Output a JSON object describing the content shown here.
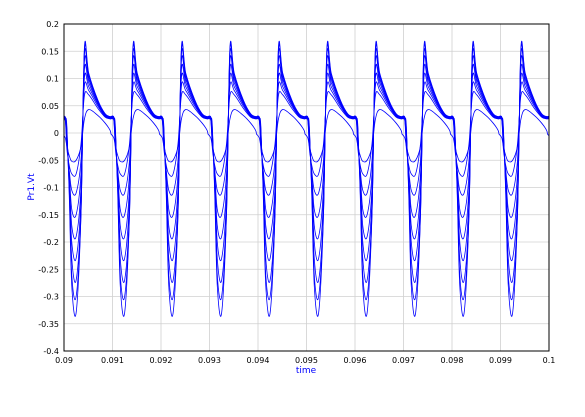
{
  "chart_data": {
    "type": "line",
    "title": "",
    "xlabel": "time",
    "ylabel": "Pr1.Vt",
    "xlim": [
      0.09,
      0.1
    ],
    "ylim": [
      -0.4,
      0.2
    ],
    "grid": true,
    "legend": "none",
    "x_ticks": [
      "0.09",
      "0.091",
      "0.092",
      "0.093",
      "0.094",
      "0.095",
      "0.096",
      "0.097",
      "0.098",
      "0.099",
      "0.1"
    ],
    "y_ticks": [
      "0.2",
      "0.15",
      "0.1",
      "0.05",
      "0",
      "-0.05",
      "-0.1",
      "-0.15",
      "-0.2",
      "-0.25",
      "-0.3",
      "-0.35",
      "-0.4"
    ],
    "period": 0.001,
    "colors": {
      "series": "#0000ff",
      "grid": "#d0d0d0",
      "axis_label": "#0000ff",
      "tick_label": "#000000"
    },
    "series_shape": {
      "x_offsets": [
        0,
        3e-05,
        6e-05,
        0.00011,
        0.00016,
        0.00025,
        0.00035,
        0.00042,
        0.00051,
        0.0007,
        0.00085,
        0.00095,
        0.00097,
        0.001
      ],
      "series": [
        {
          "y": [
            0.031,
            0.028,
            0.01,
            -0.12,
            -0.28,
            -0.33,
            -0.15,
            0.155,
            0.11,
            0.06,
            0.035,
            0.03,
            0.03,
            0.031
          ]
        },
        {
          "y": [
            0.031,
            0.028,
            0.005,
            -0.11,
            -0.26,
            -0.3,
            -0.15,
            0.15,
            0.107,
            0.059,
            0.035,
            0.03,
            0.03,
            0.031
          ]
        },
        {
          "y": [
            0.03,
            0.027,
            0.0,
            -0.1,
            -0.23,
            -0.27,
            -0.14,
            0.142,
            0.103,
            0.058,
            0.034,
            0.03,
            0.03,
            0.03
          ]
        },
        {
          "y": [
            0.03,
            0.026,
            -0.005,
            -0.09,
            -0.2,
            -0.23,
            -0.12,
            0.13,
            0.098,
            0.056,
            0.033,
            0.029,
            0.029,
            0.03
          ]
        },
        {
          "y": [
            0.029,
            0.025,
            -0.01,
            -0.08,
            -0.17,
            -0.19,
            -0.1,
            0.115,
            0.092,
            0.054,
            0.032,
            0.029,
            0.029,
            0.029
          ]
        },
        {
          "y": [
            0.028,
            0.024,
            -0.015,
            -0.075,
            -0.14,
            -0.15,
            -0.075,
            0.1,
            0.085,
            0.052,
            0.031,
            0.028,
            0.028,
            0.028
          ]
        },
        {
          "y": [
            0.027,
            0.022,
            -0.02,
            -0.07,
            -0.105,
            -0.11,
            -0.05,
            0.085,
            0.078,
            0.049,
            0.03,
            0.027,
            0.027,
            0.027
          ]
        },
        {
          "y": [
            0.026,
            0.02,
            -0.03,
            -0.06,
            -0.075,
            -0.075,
            -0.02,
            0.068,
            0.07,
            0.045,
            0.029,
            0.026,
            0.026,
            0.026
          ]
        },
        {
          "y": [
            -0.005,
            -0.01,
            -0.025,
            -0.042,
            -0.052,
            -0.05,
            -0.025,
            0.025,
            0.043,
            0.032,
            0.018,
            0.005,
            -0.002,
            -0.005
          ]
        }
      ]
    }
  }
}
